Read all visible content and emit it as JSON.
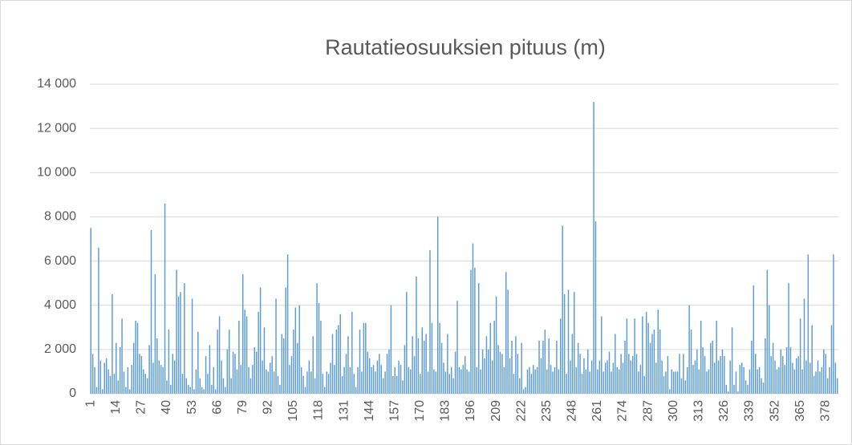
{
  "chart_data": {
    "type": "bar",
    "title": "Rautatieosuuksien pituus (m)",
    "color": "#5b9bd5",
    "grid": true,
    "ylim": [
      0,
      14000
    ],
    "yticks": [
      0,
      {
        "value": 2000,
        "label": "2 000"
      },
      {
        "value": 4000,
        "label": "4 000"
      },
      {
        "value": 6000,
        "label": "6 000"
      },
      {
        "value": 8000,
        "label": "8 000"
      },
      {
        "value": 10000,
        "label": "10 000"
      },
      {
        "value": 12000,
        "label": "12 000"
      },
      {
        "value": 14000,
        "label": "14 000"
      }
    ],
    "categories": [
      "1",
      null,
      null,
      null,
      null,
      null,
      null,
      null,
      null,
      null,
      null,
      null,
      null,
      "14",
      null,
      null,
      null,
      null,
      null,
      null,
      null,
      null,
      null,
      null,
      null,
      null,
      "27",
      null,
      null,
      null,
      null,
      null,
      null,
      null,
      null,
      null,
      null,
      null,
      null,
      "40",
      null,
      null,
      null,
      null,
      null,
      null,
      null,
      null,
      null,
      null,
      null,
      null,
      "53",
      null,
      null,
      null,
      null,
      null,
      null,
      null,
      null,
      null,
      null,
      null,
      null,
      "66",
      null,
      null,
      null,
      null,
      null,
      null,
      null,
      null,
      null,
      null,
      null,
      null,
      "79",
      null,
      null,
      null,
      null,
      null,
      null,
      null,
      null,
      null,
      null,
      null,
      null,
      "92",
      null,
      null,
      null,
      null,
      null,
      null,
      null,
      null,
      null,
      null,
      null,
      null,
      "105",
      null,
      null,
      null,
      null,
      null,
      null,
      null,
      null,
      null,
      null,
      null,
      null,
      "118",
      null,
      null,
      null,
      null,
      null,
      null,
      null,
      null,
      null,
      null,
      null,
      null,
      "131",
      null,
      null,
      null,
      null,
      null,
      null,
      null,
      null,
      null,
      null,
      null,
      null,
      "144",
      null,
      null,
      null,
      null,
      null,
      null,
      null,
      null,
      null,
      null,
      null,
      null,
      "157",
      null,
      null,
      null,
      null,
      null,
      null,
      null,
      null,
      null,
      null,
      null,
      null,
      "170",
      null,
      null,
      null,
      null,
      null,
      null,
      null,
      null,
      null,
      null,
      null,
      null,
      "183",
      null,
      null,
      null,
      null,
      null,
      null,
      null,
      null,
      null,
      null,
      null,
      null,
      "196",
      null,
      null,
      null,
      null,
      null,
      null,
      null,
      null,
      null,
      null,
      null,
      null,
      "209",
      null,
      null,
      null,
      null,
      null,
      null,
      null,
      null,
      null,
      null,
      null,
      null,
      "222",
      null,
      null,
      null,
      null,
      null,
      null,
      null,
      null,
      null,
      null,
      null,
      null,
      "235",
      null,
      null,
      null,
      null,
      null,
      null,
      null,
      null,
      null,
      null,
      null,
      null,
      "248",
      null,
      null,
      null,
      null,
      null,
      null,
      null,
      null,
      null,
      null,
      null,
      null,
      "261",
      null,
      null,
      null,
      null,
      null,
      null,
      null,
      null,
      null,
      null,
      null,
      null,
      "274",
      null,
      null,
      null,
      null,
      null,
      null,
      null,
      null,
      null,
      null,
      null,
      null,
      "287",
      null,
      null,
      null,
      null,
      null,
      null,
      null,
      null,
      null,
      null,
      null,
      null,
      "300",
      null,
      null,
      null,
      null,
      null,
      null,
      null,
      null,
      null,
      null,
      null,
      null,
      "313",
      null,
      null,
      null,
      null,
      null,
      null,
      null,
      null,
      null,
      null,
      null,
      null,
      "326",
      null,
      null,
      null,
      null,
      null,
      null,
      null,
      null,
      null,
      null,
      null,
      null,
      "339",
      null,
      null,
      null,
      null,
      null,
      null,
      null,
      null,
      null,
      null,
      null,
      null,
      "352",
      null,
      null,
      null,
      null,
      null,
      null,
      null,
      null,
      null,
      null,
      null,
      null,
      "365",
      null,
      null,
      null,
      null,
      null,
      null,
      null,
      null,
      null,
      null,
      null,
      null,
      "378",
      null,
      null,
      null,
      null,
      null,
      null
    ],
    "values": [
      7500,
      1800,
      1200,
      300,
      6600,
      1500,
      200,
      1400,
      1600,
      1100,
      800,
      4500,
      900,
      2300,
      600,
      2100,
      3400,
      1000,
      300,
      1200,
      200,
      1300,
      2300,
      3300,
      3200,
      1800,
      1700,
      1100,
      900,
      700,
      2200,
      7400,
      1400,
      5400,
      2500,
      1500,
      1300,
      1200,
      8600,
      600,
      2900,
      400,
      1800,
      1500,
      5600,
      4400,
      4600,
      900,
      5000,
      700,
      400,
      300,
      4300,
      200,
      1100,
      2800,
      700,
      300,
      200,
      1700,
      900,
      2200,
      400,
      1200,
      200,
      2900,
      3500,
      1500,
      700,
      300,
      2000,
      2900,
      700,
      1900,
      1800,
      1100,
      3300,
      1300,
      5400,
      3800,
      3500,
      1200,
      700,
      1300,
      2100,
      1900,
      3700,
      4800,
      1500,
      3000,
      1100,
      1000,
      1400,
      1700,
      1000,
      4300,
      800,
      400,
      2700,
      2500,
      4800,
      6300,
      1300,
      1700,
      2900,
      3900,
      2300,
      4000,
      1200,
      800,
      300,
      1000,
      1500,
      1000,
      2600,
      700,
      5000,
      4100,
      3300,
      900,
      300,
      1000,
      900,
      1400,
      2700,
      1300,
      2900,
      3100,
      3600,
      800,
      1200,
      1800,
      2600,
      1200,
      3700,
      900,
      300,
      1200,
      2900,
      1000,
      3200,
      3200,
      1900,
      1600,
      1200,
      1300,
      1000,
      1500,
      1800,
      1300,
      700,
      1000,
      1800,
      2000,
      4000,
      800,
      1200,
      800,
      1500,
      1300,
      600,
      2200,
      4600,
      1200,
      1100,
      2600,
      1700,
      5300,
      2500,
      900,
      3000,
      2400,
      2700,
      1000,
      6500,
      3200,
      1100,
      1000,
      8000,
      3200,
      2300,
      1400,
      1000,
      2700,
      900,
      1200,
      700,
      1900,
      4200,
      1200,
      1100,
      1300,
      1700,
      1100,
      1000,
      5600,
      6800,
      5700,
      1200,
      5000,
      1100,
      2000,
      1600,
      2600,
      2000,
      3200,
      1500,
      3300,
      4400,
      2200,
      1900,
      1800,
      1200,
      5500,
      4700,
      1600,
      2400,
      900,
      2600,
      1800,
      700,
      2300,
      200,
      300,
      1100,
      1200,
      900,
      1300,
      1100,
      1200,
      2400,
      1600,
      2400,
      2900,
      1100,
      2500,
      1300,
      1000,
      1200,
      2400,
      1100,
      3400,
      7600,
      4500,
      900,
      4700,
      1500,
      2700,
      4600,
      1200,
      2300,
      1800,
      900,
      1600,
      1100,
      2000,
      1000,
      1500,
      13200,
      7800,
      1100,
      1500,
      3500,
      1000,
      1400,
      1500,
      1900,
      1000,
      1400,
      2700,
      1200,
      1100,
      1800,
      1400,
      2400,
      3400,
      1800,
      1500,
      1700,
      3400,
      1800,
      1000,
      1300,
      3500,
      800,
      3700,
      3200,
      2300,
      2700,
      2900,
      1400,
      3800,
      2900,
      1500,
      800,
      1000,
      1700,
      200,
      1100,
      1000,
      1000,
      1000,
      1800,
      700,
      1800,
      600,
      1200,
      4000,
      2900,
      1300,
      1500,
      2000,
      1100,
      3300,
      2100,
      1700,
      1000,
      1100,
      2300,
      2400,
      1400,
      3300,
      1500,
      1700,
      2000,
      1700,
      400,
      100,
      1500,
      3000,
      400,
      1000,
      100,
      1300,
      1400,
      1200,
      600,
      400,
      1100,
      2400,
      4900,
      1800,
      1100,
      1200,
      700,
      500,
      2500,
      5600,
      4000,
      1700,
      2300,
      1500,
      1100,
      1200,
      2000,
      1700,
      1300,
      2100,
      5000,
      2100,
      1400,
      1100,
      1600,
      1700,
      3400,
      1100,
      4300,
      1500,
      6300,
      1400,
      3100,
      800,
      1000,
      1500,
      1000,
      1200,
      2000,
      1800,
      700,
      1200,
      3100,
      6300,
      1400,
      700
    ]
  }
}
